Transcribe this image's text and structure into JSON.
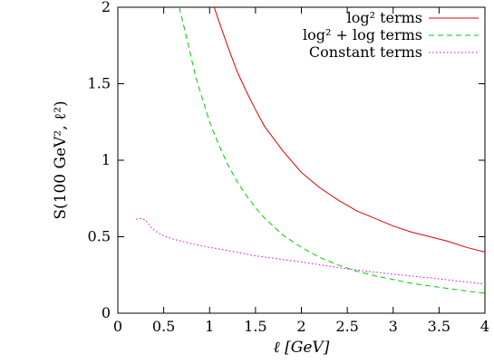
{
  "chart_data": {
    "type": "line",
    "title": "",
    "xlabel": "ℓ [GeV]",
    "ylabel": "S(100 GeV², ℓ²)",
    "xlim": [
      0,
      4
    ],
    "ylim": [
      0,
      2
    ],
    "xticks": [
      0,
      0.5,
      1,
      1.5,
      2,
      2.5,
      3,
      3.5,
      4
    ],
    "xtick_labels": [
      "0",
      "0.5",
      "1",
      "1.5",
      "2",
      "2.5",
      "3",
      "3.5",
      "4"
    ],
    "yticks": [
      0,
      0.5,
      1,
      1.5,
      2
    ],
    "ytick_labels": [
      "0",
      "0.5",
      "1",
      "1.5",
      "2"
    ],
    "grid": false,
    "legend_position": "top-right",
    "series": [
      {
        "name": "log² terms",
        "color": "#e00000",
        "dash": "solid",
        "x": [
          1.05,
          1.1,
          1.2,
          1.3,
          1.4,
          1.5,
          1.6,
          1.8,
          2.0,
          2.2,
          2.4,
          2.6,
          2.8,
          3.0,
          3.2,
          3.4,
          3.6,
          3.8,
          4.0
        ],
        "y": [
          2.0,
          1.91,
          1.74,
          1.58,
          1.45,
          1.33,
          1.22,
          1.06,
          0.92,
          0.82,
          0.74,
          0.67,
          0.62,
          0.57,
          0.53,
          0.5,
          0.47,
          0.43,
          0.4
        ]
      },
      {
        "name": "log² + log terms",
        "color": "#00cc00",
        "dash": "dashed",
        "x": [
          0.67,
          0.75,
          0.85,
          1.0,
          1.1,
          1.2,
          1.3,
          1.4,
          1.5,
          1.6,
          1.8,
          2.0,
          2.2,
          2.4,
          2.6,
          2.8,
          3.0,
          3.2,
          3.5,
          3.8,
          4.0
        ],
        "y": [
          2.0,
          1.8,
          1.54,
          1.25,
          1.1,
          0.97,
          0.86,
          0.77,
          0.69,
          0.62,
          0.51,
          0.43,
          0.365,
          0.315,
          0.275,
          0.245,
          0.22,
          0.195,
          0.17,
          0.145,
          0.13
        ]
      },
      {
        "name": "Constant terms",
        "color": "#dd00dd",
        "dash": "dotted",
        "x": [
          0.2,
          0.25,
          0.3,
          0.35,
          0.4,
          0.5,
          0.6,
          0.8,
          1.0,
          1.2,
          1.5,
          2.0,
          2.5,
          3.0,
          3.5,
          4.0
        ],
        "y": [
          0.615,
          0.62,
          0.61,
          0.57,
          0.54,
          0.505,
          0.485,
          0.455,
          0.43,
          0.41,
          0.375,
          0.335,
          0.29,
          0.255,
          0.225,
          0.19
        ]
      }
    ]
  }
}
